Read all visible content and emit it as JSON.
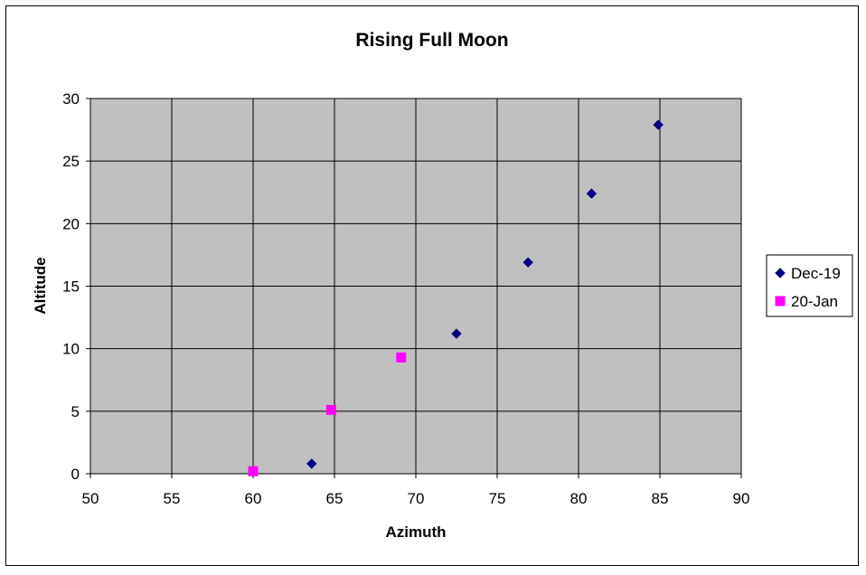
{
  "chart_data": {
    "type": "scatter",
    "title": "Rising Full Moon",
    "xlabel": "Azimuth",
    "ylabel": "Altitude",
    "xlim": [
      50,
      90
    ],
    "ylim": [
      0,
      30
    ],
    "xticks": [
      50,
      55,
      60,
      65,
      70,
      75,
      80,
      85,
      90
    ],
    "yticks": [
      0,
      5,
      10,
      15,
      20,
      25,
      30
    ],
    "grid": true,
    "legend_position": "right",
    "plot_background": "#c0c0c0",
    "series": [
      {
        "name": "Dec-19",
        "marker": "diamond",
        "color": "#000080",
        "x": [
          63.6,
          72.5,
          76.9,
          80.8,
          84.9
        ],
        "y": [
          0.8,
          11.2,
          16.9,
          22.4,
          27.9
        ]
      },
      {
        "name": "20-Jan",
        "marker": "square",
        "color": "#ff00ff",
        "x": [
          60.0,
          64.8,
          69.1
        ],
        "y": [
          0.2,
          5.1,
          9.3
        ]
      }
    ]
  }
}
